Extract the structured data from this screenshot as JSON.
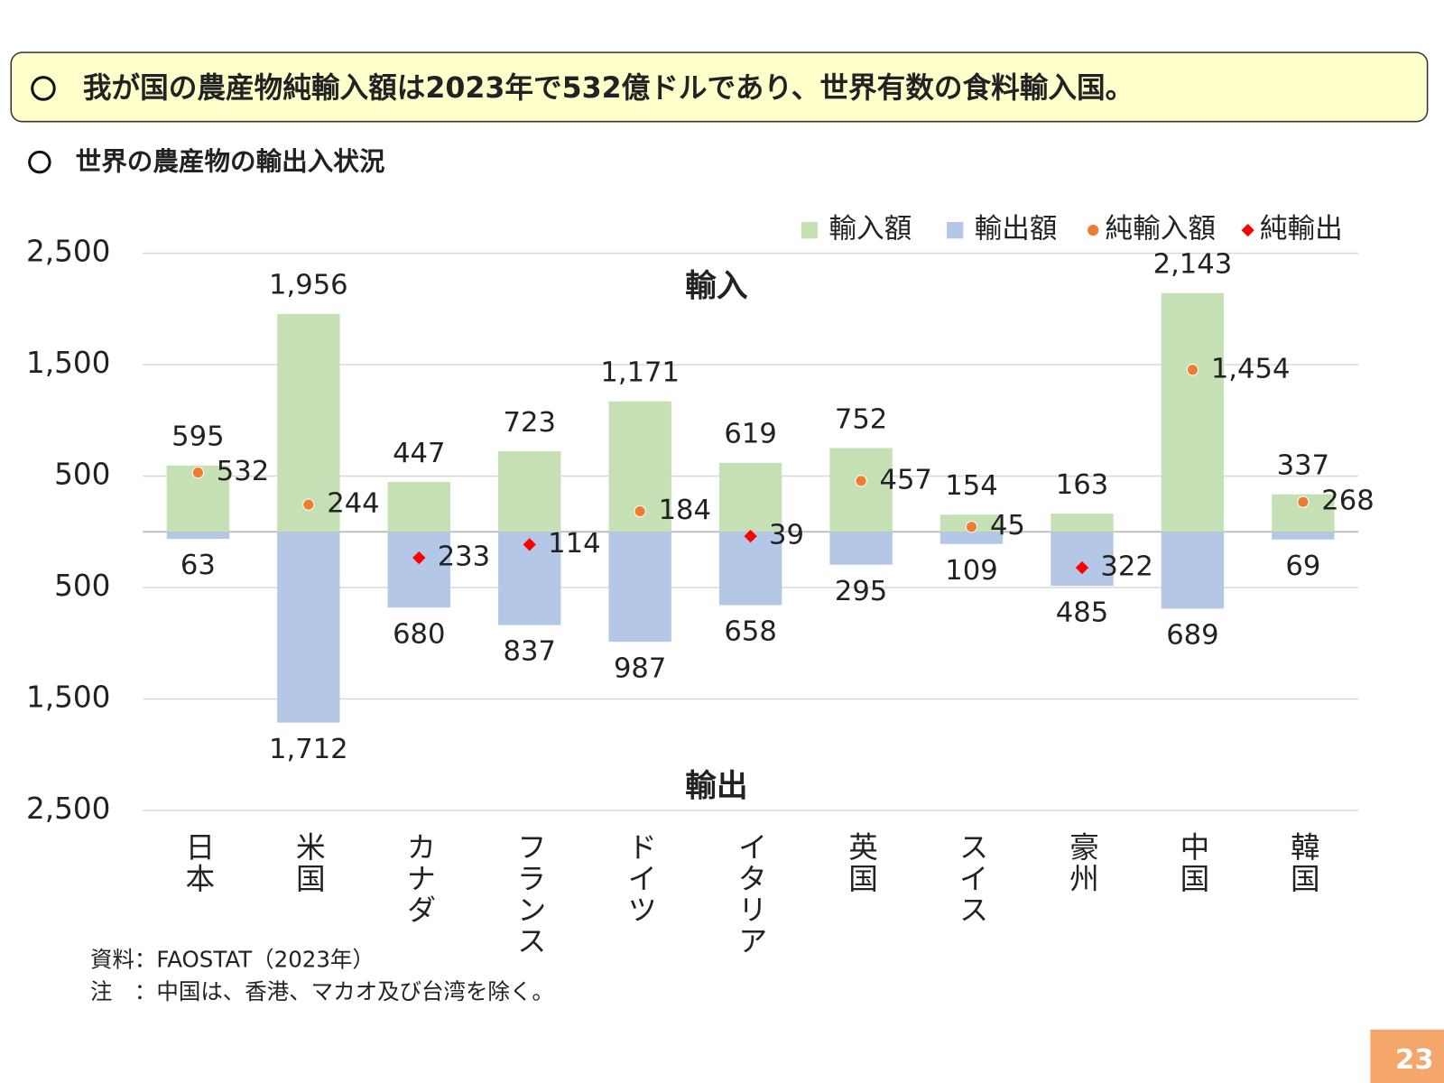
{
  "header": {
    "title": "我が国の農産物純輸入額は2023年で532億ドルであり、世界有数の食料輸入国。"
  },
  "chart_data": {
    "type": "bar",
    "title": "世界の農産物の輸出入状況",
    "annotations": [
      "輸入",
      "輸出"
    ],
    "categories": [
      "日本",
      "米国",
      "カナダ",
      "フランス",
      "ドイツ",
      "イタリア",
      "英国",
      "スイス",
      "豪州",
      "中国",
      "韓国"
    ],
    "series": [
      {
        "name": "輸入額",
        "color": "#c5e0b4",
        "marker": "bar",
        "values": [
          595,
          1956,
          447,
          723,
          1171,
          619,
          752,
          154,
          163,
          2143,
          337
        ],
        "value_labels": [
          "595",
          "1,956",
          "447",
          "723",
          "1,171",
          "619",
          "752",
          "154",
          "163",
          "2,143",
          "337"
        ]
      },
      {
        "name": "輸出額",
        "color": "#b4c7e7",
        "marker": "bar",
        "values": [
          -63,
          -1712,
          -680,
          -837,
          -987,
          -658,
          -295,
          -109,
          -485,
          -689,
          -69
        ],
        "value_labels": [
          "63",
          "1,712",
          "680",
          "837",
          "987",
          "658",
          "295",
          "109",
          "485",
          "689",
          "69"
        ]
      },
      {
        "name": "純輸入額",
        "color": "#ed7d31",
        "marker": "circle",
        "values": [
          532,
          244,
          null,
          null,
          184,
          null,
          457,
          45,
          null,
          1454,
          268
        ],
        "value_labels": [
          "532",
          "244",
          null,
          null,
          "184",
          null,
          "457",
          "45",
          null,
          "1,454",
          "268"
        ]
      },
      {
        "name": "純輸出",
        "color": "#ff0000",
        "marker": "diamond",
        "values": [
          null,
          null,
          -233,
          -114,
          null,
          -39,
          null,
          null,
          -322,
          null,
          null
        ],
        "value_labels": [
          null,
          null,
          "233",
          "114",
          null,
          "39",
          null,
          null,
          "322",
          null,
          null
        ]
      }
    ],
    "ylim": [
      -2500,
      2500
    ],
    "yticks": [
      {
        "value": 2500,
        "label": "2,500"
      },
      {
        "value": 1500,
        "label": "1,500"
      },
      500,
      {
        "value": -500,
        "label": "500"
      },
      {
        "value": -1500,
        "label": "1,500"
      },
      {
        "value": -2500,
        "label": "2,500"
      }
    ],
    "grid": true,
    "legend": "top-right"
  },
  "notes": [
    "資料：FAOSTAT（2023年）",
    "注　：中国は、香港、マカオ及び台湾を除く。"
  ],
  "page_number": "23"
}
